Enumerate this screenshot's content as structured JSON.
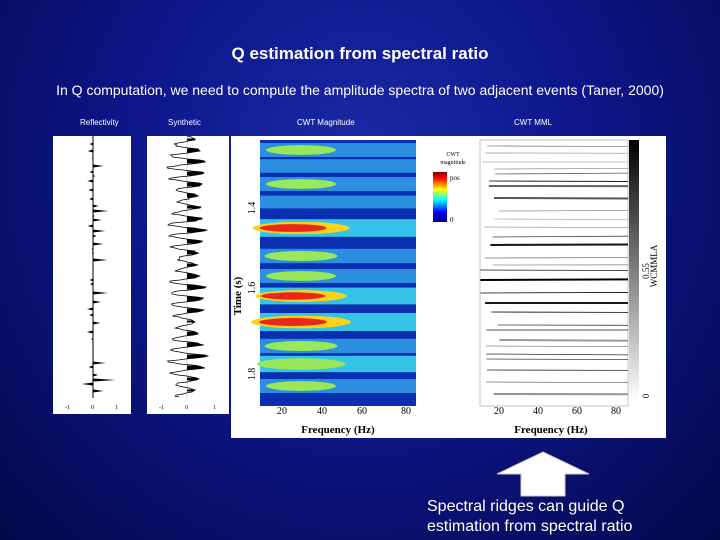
{
  "slide": {
    "title": "Q estimation from spectral ratio",
    "subtitle": "In Q computation, we need to compute the amplitude spectra of two adjacent events (Taner, 2000)",
    "callout_line1": "Spectral ridges can guide Q",
    "callout_line2": "estimation from spectral ratio"
  },
  "panels": {
    "reflectivity_label": "Reflectivity",
    "synthetic_label": "Synthetic",
    "cwt_magnitude_label": "CWT Magnitude",
    "cwt_mml_label": "CWT MML"
  },
  "figure": {
    "time_axis_label": "Time (s)",
    "time_ticks": [
      "1.4",
      "1.6",
      "1.8"
    ],
    "freq_axis_label": "Frequency (Hz)",
    "freq_ticks": [
      "20",
      "40",
      "60",
      "80"
    ],
    "colorbar_title_1": "CWT",
    "colorbar_title_2": "magnitude",
    "colorbar_top": "pos",
    "colorbar_bottom": "0",
    "gray_bar_label": "WCMMLA",
    "gray_bar_mid": "0.55",
    "gray_bar_bottom": "0",
    "trace_ticks_1": [
      "-1",
      "0",
      "1"
    ],
    "trace_ticks_2": [
      "-1",
      "0",
      "1"
    ]
  },
  "colors": {
    "background": "#0d168a",
    "text": "#ffffff",
    "arrow": "#ffffff"
  }
}
